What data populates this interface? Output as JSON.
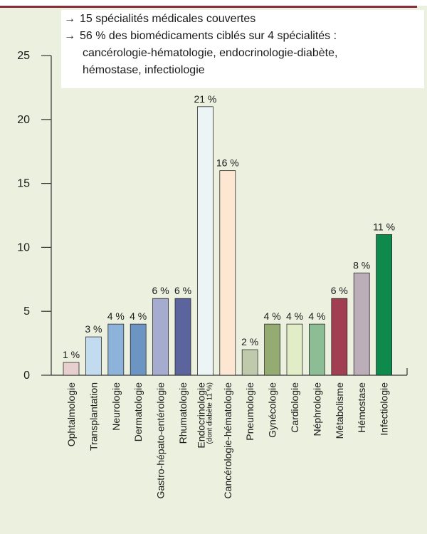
{
  "note": {
    "arrow_glyph": "→",
    "line1": "15 spécialités médicales couvertes",
    "line2": "56 % des biomédicaments ciblés sur 4 spécialités :",
    "line3": "cancérologie-hématologie, endocrinologie-diabète,",
    "line4": "hémostase, infectiologie"
  },
  "chart_data": {
    "type": "bar",
    "ylim": [
      0,
      25
    ],
    "yticks": [
      "0",
      "5",
      "10",
      "15",
      "20",
      "25"
    ],
    "grid": false,
    "categories": [
      {
        "label": "Ophtalmologie",
        "value": 1,
        "data_label": "1 %",
        "color": "#e6cfcd"
      },
      {
        "label": "Transplantation",
        "value": 3,
        "data_label": "3 %",
        "color": "#c3dbef"
      },
      {
        "label": "Neurologie",
        "value": 4,
        "data_label": "4 %",
        "color": "#8db3da"
      },
      {
        "label": "Dermatologie",
        "value": 4,
        "data_label": "4 %",
        "color": "#6d95c3"
      },
      {
        "label": "Gastro-hépato-entérologie",
        "value": 6,
        "data_label": "6 %",
        "color": "#a6acd0"
      },
      {
        "label": "Rhumatologie",
        "value": 6,
        "data_label": "6 %",
        "color": "#5c649e"
      },
      {
        "label": "Endocrinologie",
        "sublabel": "(dont diabète 11 %)",
        "value": 21,
        "data_label": "21 %",
        "color": "#ecf4f6"
      },
      {
        "label": "Cancérologie-hématologie",
        "value": 16,
        "data_label": "16 %",
        "color": "#fde7d3"
      },
      {
        "label": "Pneumologie",
        "value": 2,
        "data_label": "2 %",
        "color": "#bfc9ac"
      },
      {
        "label": "Gynécologie",
        "value": 4,
        "data_label": "4 %",
        "color": "#94ab72"
      },
      {
        "label": "Cardiologie",
        "value": 4,
        "data_label": "4 %",
        "color": "#e1edc6"
      },
      {
        "label": "Néphrologie",
        "value": 4,
        "data_label": "4 %",
        "color": "#8dbd95"
      },
      {
        "label": "Métabolisme",
        "value": 6,
        "data_label": "6 %",
        "color": "#a23e51"
      },
      {
        "label": "Hémostase",
        "value": 8,
        "data_label": "8 %",
        "color": "#bbaeb9"
      },
      {
        "label": "Infectiologie",
        "value": 11,
        "data_label": "11 %",
        "color": "#0e8a4c"
      }
    ]
  }
}
